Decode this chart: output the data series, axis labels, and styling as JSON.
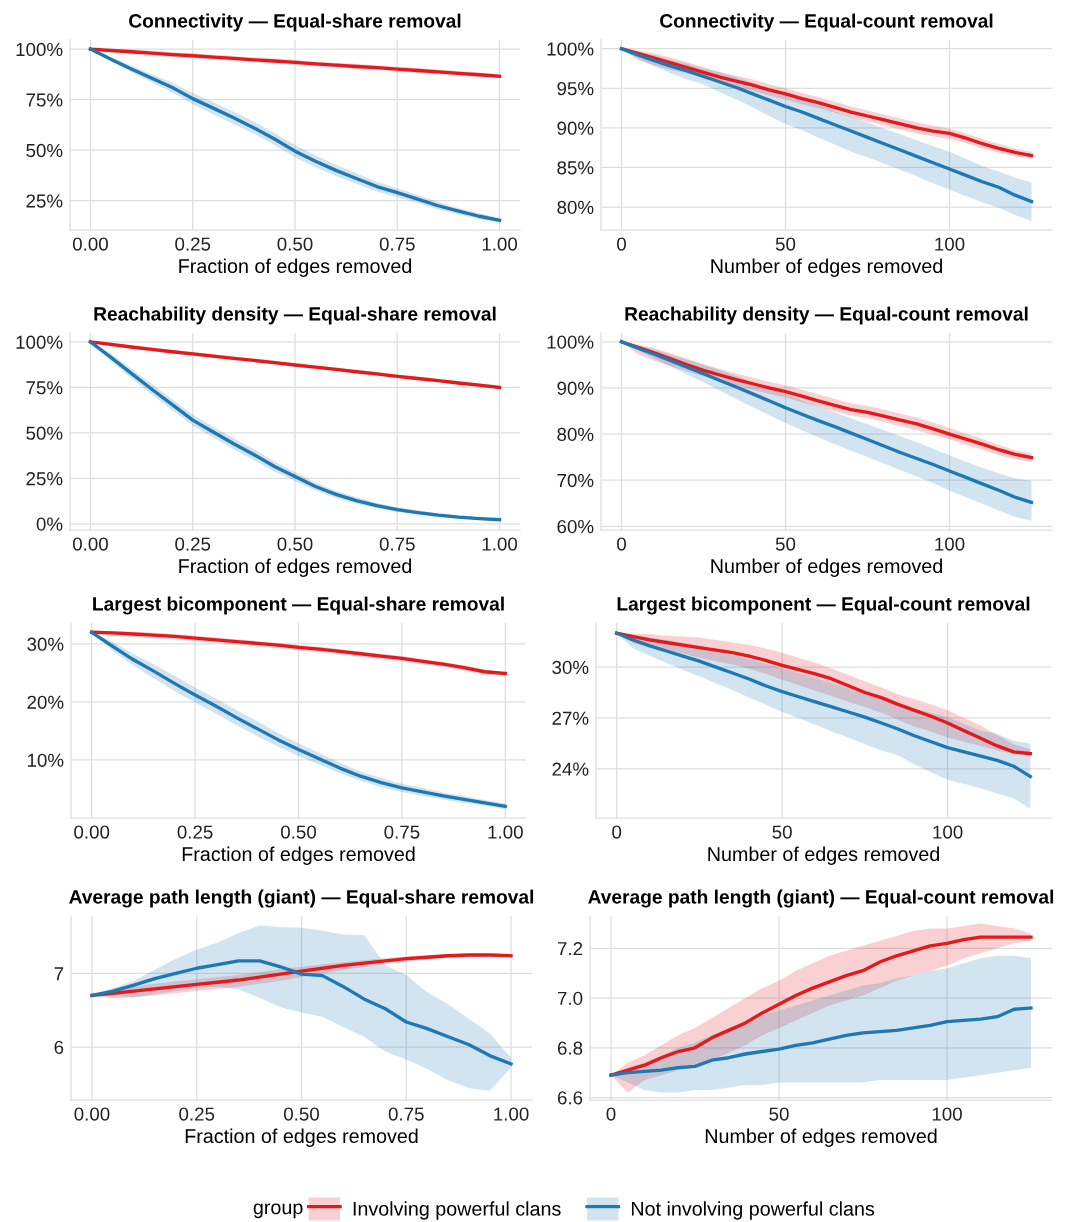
{
  "chart_data": [
    {
      "type": "line",
      "title": "Connectivity — Equal-share removal",
      "xlabel": "Fraction of edges removed",
      "x": [
        0,
        0.05,
        0.1,
        0.15,
        0.2,
        0.25,
        0.3,
        0.35,
        0.4,
        0.45,
        0.5,
        0.55,
        0.6,
        0.65,
        0.7,
        0.75,
        0.8,
        0.85,
        0.9,
        0.95,
        1
      ],
      "xlim": [
        -0.05,
        1.05
      ],
      "xticks": [
        {
          "value": 0,
          "label": "0.00"
        },
        0.25,
        {
          "value": 0.5,
          "label": "0.50"
        },
        0.75,
        {
          "value": 1,
          "label": "1.00"
        }
      ],
      "ylim": [
        10.5,
        104.5
      ],
      "yticks": [
        {
          "value": 25,
          "label": "25%"
        },
        {
          "value": 50,
          "label": "50%"
        },
        {
          "value": 75,
          "label": "75%"
        },
        {
          "value": 100,
          "label": "100%"
        }
      ],
      "grid": true,
      "legend": "bottom",
      "legend_title": "group",
      "series": [
        {
          "name": "Involving powerful clans",
          "color": "#e31a1c",
          "values": [
            100,
            99.3,
            98.7,
            98.0,
            97.3,
            96.7,
            96.0,
            95.4,
            94.7,
            94.1,
            93.4,
            92.7,
            92.1,
            91.4,
            90.8,
            90.1,
            89.4,
            88.7,
            88.0,
            87.3,
            86.6
          ],
          "lower": [
            100,
            98.6,
            97.5,
            96.8,
            96.1,
            95.5,
            94.8,
            94.2,
            93.5,
            92.9,
            92.2,
            91.5,
            90.9,
            90.2,
            89.6,
            88.9,
            88.2,
            87.5,
            86.8,
            86.2,
            85.6
          ],
          "upper": [
            100,
            99.9,
            99.9,
            99.2,
            98.5,
            97.9,
            97.2,
            96.6,
            95.9,
            95.3,
            94.6,
            93.9,
            93.3,
            92.6,
            92.0,
            91.3,
            90.6,
            89.9,
            89.2,
            88.4,
            87.6
          ]
        },
        {
          "name": "Not involving powerful clans",
          "color": "#1f78b4",
          "values": [
            100,
            95.0,
            90.2,
            85.6,
            81.0,
            75.5,
            70.8,
            66.0,
            61.0,
            55.5,
            49.5,
            44.5,
            40.0,
            36.0,
            32.0,
            29.0,
            25.8,
            22.5,
            19.8,
            17.3,
            15.3
          ],
          "lower": [
            100,
            94.0,
            88.7,
            83.6,
            78.5,
            72.7,
            67.8,
            63.0,
            58.0,
            52.5,
            46.5,
            41.5,
            37.2,
            33.4,
            29.6,
            26.8,
            23.8,
            20.7,
            18.2,
            15.9,
            14.1
          ],
          "upper": [
            100,
            96.0,
            91.7,
            87.6,
            83.5,
            78.3,
            73.8,
            69.0,
            64.0,
            58.5,
            52.5,
            47.5,
            42.8,
            38.6,
            34.4,
            31.2,
            27.8,
            24.3,
            21.4,
            18.7,
            16.5
          ]
        }
      ]
    },
    {
      "type": "line",
      "title": "Connectivity — Equal-count removal",
      "xlabel": "Number of edges removed",
      "x": [
        0,
        5,
        10,
        15,
        20,
        25,
        30,
        35,
        40,
        45,
        50,
        55,
        60,
        65,
        70,
        75,
        80,
        85,
        90,
        95,
        100,
        105,
        110,
        115,
        120,
        125
      ],
      "xlim": [
        -6.25,
        131.25
      ],
      "xticks": [
        0,
        50,
        100
      ],
      "ylim": [
        77.1,
        101.1
      ],
      "yticks": [
        {
          "value": 80,
          "label": "80%"
        },
        {
          "value": 85,
          "label": "85%"
        },
        {
          "value": 90,
          "label": "90%"
        },
        {
          "value": 95,
          "label": "95%"
        },
        {
          "value": 100,
          "label": "100%"
        }
      ],
      "grid": true,
      "series": [
        {
          "name": "Involving powerful clans",
          "color": "#e31a1c",
          "values": [
            100,
            99.4,
            98.8,
            98.2,
            97.6,
            97.0,
            96.4,
            95.9,
            95.4,
            94.8,
            94.3,
            93.7,
            93.2,
            92.6,
            92.0,
            91.5,
            91.0,
            90.5,
            90.0,
            89.6,
            89.3,
            88.7,
            88.0,
            87.4,
            86.9,
            86.5
          ],
          "lower": [
            100,
            98.6,
            97.9,
            97.3,
            96.9,
            96.3,
            95.8,
            95.2,
            94.7,
            94.1,
            93.6,
            93.0,
            92.5,
            91.9,
            91.3,
            90.8,
            90.3,
            89.8,
            89.3,
            88.9,
            88.6,
            88.1,
            87.4,
            86.9,
            86.4,
            86.1
          ],
          "upper": [
            100,
            99.8,
            99.4,
            98.9,
            98.3,
            97.7,
            97.1,
            96.6,
            96.1,
            95.5,
            95.0,
            94.4,
            93.9,
            93.3,
            92.7,
            92.2,
            91.7,
            91.2,
            90.7,
            90.3,
            89.9,
            89.3,
            88.6,
            88.0,
            87.4,
            87.0
          ]
        },
        {
          "name": "Not involving powerful clans",
          "color": "#1f78b4",
          "values": [
            100,
            99.2,
            98.5,
            97.8,
            97.2,
            96.5,
            95.8,
            95.1,
            94.3,
            93.5,
            92.7,
            92.0,
            91.2,
            90.4,
            89.6,
            88.8,
            88.0,
            87.2,
            86.4,
            85.6,
            84.8,
            84.0,
            83.2,
            82.5,
            81.5,
            80.7
          ],
          "lower": [
            100,
            98.7,
            97.8,
            96.9,
            96.1,
            95.5,
            94.5,
            93.6,
            92.6,
            91.5,
            90.5,
            89.7,
            88.8,
            87.9,
            87.0,
            86.3,
            85.5,
            84.7,
            83.9,
            83.0,
            82.2,
            81.4,
            80.6,
            79.9,
            79.0,
            78.2
          ],
          "upper": [
            100,
            99.6,
            99.2,
            98.6,
            98.1,
            97.5,
            97.0,
            96.4,
            95.7,
            94.9,
            94.2,
            93.6,
            92.9,
            92.1,
            91.4,
            90.7,
            89.9,
            89.2,
            88.4,
            87.7,
            87.0,
            86.1,
            85.2,
            84.5,
            83.7,
            83.1
          ]
        }
      ]
    },
    {
      "type": "line",
      "title": "Reachability density — Equal-share removal",
      "xlabel": "Fraction of edges removed",
      "x": [
        0,
        0.05,
        0.1,
        0.15,
        0.2,
        0.25,
        0.3,
        0.35,
        0.4,
        0.45,
        0.5,
        0.55,
        0.6,
        0.65,
        0.7,
        0.75,
        0.8,
        0.85,
        0.9,
        0.95,
        1
      ],
      "xlim": [
        -0.05,
        1.05
      ],
      "xticks": [
        {
          "value": 0,
          "label": "0.00"
        },
        0.25,
        {
          "value": 0.5,
          "label": "0.50"
        },
        0.75,
        {
          "value": 1,
          "label": "1.00"
        }
      ],
      "ylim": [
        -3.4,
        104.9
      ],
      "yticks": [
        {
          "value": 0,
          "label": "0%"
        },
        {
          "value": 25,
          "label": "25%"
        },
        {
          "value": 50,
          "label": "50%"
        },
        {
          "value": 75,
          "label": "75%"
        },
        {
          "value": 100,
          "label": "100%"
        }
      ],
      "grid": true,
      "series": [
        {
          "name": "Involving powerful clans",
          "color": "#e31a1c",
          "values": [
            100,
            98.6,
            97.2,
            95.9,
            94.6,
            93.4,
            92.2,
            91.0,
            89.8,
            88.6,
            87.3,
            86.1,
            84.9,
            83.6,
            82.4,
            81.1,
            79.9,
            78.7,
            77.4,
            76.2,
            75.0
          ],
          "lower": [
            100,
            97.6,
            96.2,
            94.9,
            93.6,
            92.4,
            91.2,
            90.0,
            88.8,
            87.6,
            86.3,
            85.1,
            83.9,
            82.6,
            81.4,
            80.1,
            78.9,
            77.7,
            76.4,
            75.2,
            74.0
          ],
          "upper": [
            100,
            99.4,
            98.2,
            96.9,
            95.6,
            94.4,
            93.2,
            92.0,
            90.8,
            89.6,
            88.3,
            87.1,
            85.9,
            84.6,
            83.4,
            82.1,
            80.9,
            79.7,
            78.4,
            77.2,
            76.0
          ]
        },
        {
          "name": "Not involving powerful clans",
          "color": "#1f78b4",
          "values": [
            100,
            91.5,
            82.7,
            74.0,
            65.5,
            57.0,
            50.5,
            44.0,
            38.0,
            31.5,
            26.0,
            20.5,
            16.2,
            12.8,
            10.0,
            7.8,
            6.2,
            4.8,
            3.7,
            2.9,
            2.3
          ],
          "lower": [
            100,
            89.5,
            80.2,
            71.0,
            62.5,
            54.0,
            47.5,
            41.0,
            35.0,
            28.7,
            23.5,
            18.3,
            14.2,
            11.0,
            8.5,
            6.5,
            5.1,
            3.8,
            2.8,
            2.1,
            1.6
          ],
          "upper": [
            100,
            93.5,
            85.2,
            77.0,
            68.5,
            60.0,
            53.5,
            47.0,
            41.0,
            34.3,
            28.5,
            22.7,
            18.2,
            14.6,
            11.5,
            9.1,
            7.3,
            5.8,
            4.6,
            3.7,
            3.0
          ]
        }
      ]
    },
    {
      "type": "line",
      "title": "Reachability density — Equal-count removal",
      "xlabel": "Number of edges removed",
      "x": [
        0,
        5,
        10,
        15,
        20,
        25,
        30,
        35,
        40,
        45,
        50,
        55,
        60,
        65,
        70,
        75,
        80,
        85,
        90,
        95,
        100,
        105,
        110,
        115,
        120,
        125
      ],
      "xlim": [
        -6.25,
        131.25
      ],
      "xticks": [
        0,
        50,
        100
      ],
      "ylim": [
        59.2,
        101.9
      ],
      "yticks": [
        {
          "value": 60,
          "label": "60%"
        },
        {
          "value": 70,
          "label": "70%"
        },
        {
          "value": 80,
          "label": "80%"
        },
        {
          "value": 90,
          "label": "90%"
        },
        {
          "value": 100,
          "label": "100%"
        }
      ],
      "grid": true,
      "series": [
        {
          "name": "Involving powerful clans",
          "color": "#e31a1c",
          "values": [
            100,
            98.8,
            97.6,
            96.3,
            95.0,
            93.8,
            92.8,
            91.8,
            90.9,
            90.0,
            89.2,
            88.2,
            87.2,
            86.2,
            85.3,
            84.7,
            83.9,
            83.0,
            82.2,
            81.1,
            80.0,
            78.9,
            77.8,
            76.6,
            75.6,
            74.9
          ],
          "lower": [
            100,
            97.3,
            95.9,
            94.7,
            93.6,
            92.5,
            91.5,
            90.5,
            89.6,
            88.7,
            87.9,
            86.9,
            85.9,
            84.9,
            84.0,
            83.4,
            82.6,
            81.7,
            80.9,
            79.8,
            78.8,
            77.7,
            76.6,
            75.4,
            74.5,
            74.0
          ],
          "upper": [
            100,
            99.4,
            98.6,
            97.5,
            96.3,
            95.1,
            94.1,
            93.1,
            92.2,
            91.3,
            90.6,
            89.6,
            88.6,
            87.6,
            86.7,
            86.1,
            85.3,
            84.4,
            83.6,
            82.5,
            81.3,
            80.1,
            78.9,
            77.7,
            76.5,
            75.8
          ]
        },
        {
          "name": "Not involving powerful clans",
          "color": "#1f78b4",
          "values": [
            100,
            98.6,
            97.3,
            95.9,
            94.5,
            93.1,
            91.6,
            90.2,
            88.7,
            87.2,
            85.7,
            84.3,
            82.9,
            81.6,
            80.2,
            78.8,
            77.4,
            76.0,
            74.7,
            73.4,
            72.0,
            70.6,
            69.2,
            67.8,
            66.3,
            65.2
          ],
          "lower": [
            100,
            98.1,
            96.3,
            94.6,
            92.9,
            91.2,
            89.4,
            87.6,
            85.8,
            84.1,
            82.4,
            80.8,
            79.3,
            77.8,
            76.4,
            75.0,
            73.6,
            72.2,
            70.8,
            69.4,
            67.7,
            66.3,
            64.9,
            63.4,
            62.0,
            61.2
          ],
          "upper": [
            100,
            99.2,
            98.3,
            97.2,
            96.1,
            95.0,
            93.8,
            92.6,
            91.3,
            89.9,
            88.6,
            87.3,
            86.0,
            84.7,
            83.4,
            82.1,
            80.8,
            79.5,
            78.2,
            76.8,
            75.4,
            74.0,
            72.7,
            71.5,
            70.4,
            69.8
          ]
        }
      ]
    },
    {
      "type": "line",
      "title": "Largest bicomponent — Equal-share removal",
      "xlabel": "Fraction of edges removed",
      "x": [
        0,
        0.05,
        0.1,
        0.15,
        0.2,
        0.25,
        0.3,
        0.35,
        0.4,
        0.45,
        0.5,
        0.55,
        0.6,
        0.65,
        0.7,
        0.75,
        0.8,
        0.85,
        0.9,
        0.95,
        1
      ],
      "xlim": [
        -0.05,
        1.05
      ],
      "xticks": [
        {
          "value": 0,
          "label": "0.00"
        },
        0.25,
        {
          "value": 0.5,
          "label": "0.50"
        },
        0.75,
        {
          "value": 1,
          "label": "1.00"
        }
      ],
      "ylim": [
        0,
        33.6
      ],
      "yticks": [
        {
          "value": 10,
          "label": "10%"
        },
        {
          "value": 20,
          "label": "20%"
        },
        {
          "value": 30,
          "label": "30%"
        }
      ],
      "grid": true,
      "series": [
        {
          "name": "Involving powerful clans",
          "color": "#e31a1c",
          "values": [
            32.0,
            31.9,
            31.7,
            31.5,
            31.3,
            31.0,
            30.7,
            30.4,
            30.1,
            29.8,
            29.4,
            29.1,
            28.7,
            28.3,
            27.9,
            27.5,
            27.0,
            26.5,
            25.9,
            25.2,
            24.9
          ],
          "lower": [
            32.0,
            31.4,
            31.2,
            31.0,
            30.8,
            30.5,
            30.2,
            29.9,
            29.6,
            29.3,
            28.9,
            28.6,
            28.2,
            27.8,
            27.4,
            27.0,
            26.5,
            26.0,
            25.4,
            24.7,
            24.5
          ],
          "upper": [
            32.0,
            32.2,
            32.1,
            31.9,
            31.7,
            31.4,
            31.1,
            30.8,
            30.5,
            30.2,
            29.8,
            29.5,
            29.1,
            28.7,
            28.3,
            27.9,
            27.4,
            26.9,
            26.3,
            25.6,
            25.2
          ]
        },
        {
          "name": "Not involving powerful clans",
          "color": "#1f78b4",
          "values": [
            32.0,
            29.6,
            27.3,
            25.3,
            23.2,
            21.2,
            19.3,
            17.3,
            15.4,
            13.5,
            11.8,
            10.2,
            8.6,
            7.2,
            6.1,
            5.2,
            4.5,
            3.8,
            3.2,
            2.6,
            2.0
          ],
          "lower": [
            32.0,
            28.8,
            26.3,
            24.1,
            21.9,
            19.9,
            18.0,
            16.0,
            14.1,
            12.3,
            10.7,
            9.2,
            7.7,
            6.4,
            5.3,
            4.5,
            3.8,
            3.2,
            2.6,
            2.1,
            1.5
          ],
          "upper": [
            32.0,
            30.4,
            28.3,
            26.5,
            24.5,
            22.5,
            20.6,
            18.6,
            16.7,
            14.7,
            12.9,
            11.2,
            9.5,
            8.0,
            6.9,
            5.9,
            5.2,
            4.4,
            3.8,
            3.1,
            2.5
          ]
        }
      ]
    },
    {
      "type": "line",
      "title": "Largest bicomponent — Equal-count removal",
      "xlabel": "Number of edges removed",
      "x": [
        0,
        5,
        10,
        15,
        20,
        25,
        30,
        35,
        40,
        45,
        50,
        55,
        60,
        65,
        70,
        75,
        80,
        85,
        90,
        95,
        100,
        105,
        110,
        115,
        120,
        125
      ],
      "xlim": [
        -6.25,
        131.25
      ],
      "xticks": [
        0,
        50,
        100
      ],
      "ylim": [
        21.1,
        32.6
      ],
      "yticks": [
        {
          "value": 24,
          "label": "24%"
        },
        {
          "value": 27,
          "label": "27%"
        },
        {
          "value": 30,
          "label": "30%"
        }
      ],
      "grid": true,
      "series": [
        {
          "name": "Involving powerful clans",
          "color": "#e31a1c",
          "values": [
            32.0,
            31.8,
            31.6,
            31.45,
            31.3,
            31.15,
            31.0,
            30.85,
            30.65,
            30.4,
            30.1,
            29.85,
            29.6,
            29.3,
            28.9,
            28.5,
            28.2,
            27.8,
            27.45,
            27.1,
            26.7,
            26.25,
            25.8,
            25.35,
            25.0,
            24.9
          ],
          "lower": [
            32.0,
            31.4,
            31.2,
            31.0,
            30.8,
            30.55,
            30.35,
            30.15,
            29.9,
            29.6,
            29.25,
            28.95,
            28.6,
            28.3,
            27.95,
            27.65,
            27.3,
            26.9,
            26.5,
            26.2,
            25.85,
            25.6,
            25.35,
            25.1,
            24.85,
            24.75
          ],
          "upper": [
            32.0,
            31.95,
            31.95,
            31.85,
            31.8,
            31.75,
            31.6,
            31.45,
            31.3,
            31.1,
            30.85,
            30.55,
            30.25,
            29.9,
            29.55,
            29.15,
            28.8,
            28.4,
            28.1,
            27.8,
            27.45,
            27.0,
            26.55,
            26.0,
            25.45,
            25.15
          ]
        },
        {
          "name": "Not involving powerful clans",
          "color": "#1f78b4",
          "values": [
            32.0,
            31.6,
            31.25,
            30.95,
            30.65,
            30.35,
            30.0,
            29.65,
            29.3,
            28.9,
            28.55,
            28.25,
            27.95,
            27.65,
            27.35,
            27.05,
            26.7,
            26.35,
            25.95,
            25.6,
            25.25,
            25.0,
            24.75,
            24.5,
            24.15,
            23.55
          ],
          "lower": [
            32.0,
            31.1,
            30.65,
            30.25,
            29.85,
            29.45,
            29.05,
            28.65,
            28.2,
            27.8,
            27.35,
            27.0,
            26.6,
            26.2,
            25.85,
            25.45,
            25.1,
            24.8,
            24.25,
            23.8,
            23.35,
            23.1,
            22.85,
            22.55,
            22.25,
            21.65
          ],
          "upper": [
            32.0,
            31.9,
            31.75,
            31.6,
            31.45,
            31.25,
            31.0,
            30.7,
            30.45,
            30.2,
            29.95,
            29.65,
            29.35,
            29.05,
            28.75,
            28.45,
            28.15,
            27.85,
            27.55,
            27.3,
            27.05,
            26.65,
            26.25,
            26.05,
            25.65,
            25.5
          ]
        }
      ]
    },
    {
      "type": "line",
      "title": "Average path length (giant) — Equal-share removal",
      "xlabel": "Fraction of edges removed",
      "x": [
        0,
        0.05,
        0.1,
        0.15,
        0.2,
        0.25,
        0.3,
        0.35,
        0.4,
        0.45,
        0.5,
        0.55,
        0.6,
        0.65,
        0.7,
        0.75,
        0.8,
        0.85,
        0.9,
        0.95,
        1
      ],
      "xlim": [
        -0.05,
        1.05
      ],
      "xticks": [
        {
          "value": 0,
          "label": "0.00"
        },
        0.25,
        {
          "value": 0.5,
          "label": "0.50"
        },
        0.75,
        {
          "value": 1,
          "label": "1.00"
        }
      ],
      "ylim": [
        5.28,
        7.78
      ],
      "yticks": [
        6,
        7
      ],
      "grid": true,
      "series": [
        {
          "name": "Involving powerful clans",
          "color": "#e31a1c",
          "values": [
            6.7,
            6.73,
            6.76,
            6.79,
            6.82,
            6.85,
            6.88,
            6.91,
            6.95,
            6.99,
            7.03,
            7.07,
            7.11,
            7.14,
            7.17,
            7.2,
            7.22,
            7.24,
            7.25,
            7.25,
            7.24
          ],
          "lower": [
            6.7,
            6.66,
            6.68,
            6.7,
            6.73,
            6.76,
            6.79,
            6.82,
            6.86,
            6.9,
            6.95,
            7.0,
            7.05,
            7.09,
            7.13,
            7.16,
            7.19,
            7.21,
            7.22,
            7.23,
            7.22
          ],
          "upper": [
            6.7,
            6.78,
            6.82,
            6.86,
            6.89,
            6.92,
            6.95,
            6.98,
            7.02,
            7.06,
            7.09,
            7.12,
            7.15,
            7.18,
            7.21,
            7.23,
            7.25,
            7.26,
            7.27,
            7.27,
            7.26
          ]
        },
        {
          "name": "Not involving powerful clans",
          "color": "#1f78b4",
          "values": [
            6.7,
            6.76,
            6.84,
            6.93,
            7.0,
            7.07,
            7.12,
            7.17,
            7.17,
            7.09,
            6.99,
            6.97,
            6.82,
            6.65,
            6.52,
            6.34,
            6.25,
            6.14,
            6.03,
            5.88,
            5.77
          ],
          "lower": [
            6.7,
            6.7,
            6.67,
            6.72,
            6.76,
            6.8,
            6.82,
            6.78,
            6.67,
            6.54,
            6.47,
            6.41,
            6.27,
            6.14,
            5.94,
            5.83,
            5.7,
            5.55,
            5.44,
            5.41,
            5.72
          ],
          "upper": [
            6.7,
            6.8,
            6.9,
            7.05,
            7.2,
            7.32,
            7.42,
            7.55,
            7.65,
            7.63,
            7.62,
            7.58,
            7.53,
            7.52,
            7.11,
            6.98,
            6.74,
            6.58,
            6.38,
            6.18,
            5.85
          ]
        }
      ]
    },
    {
      "type": "line",
      "title": "Average path length (giant) — Equal-count removal",
      "xlabel": "Number of edges removed",
      "x": [
        0,
        5,
        10,
        15,
        20,
        25,
        30,
        35,
        40,
        45,
        50,
        55,
        60,
        65,
        70,
        75,
        80,
        85,
        90,
        95,
        100,
        105,
        110,
        115,
        120,
        125
      ],
      "xlim": [
        -6.25,
        131.25
      ],
      "xticks": [
        0,
        50,
        100
      ],
      "ylim": [
        6.59,
        7.33
      ],
      "yticks": [
        6.6,
        6.8,
        {
          "value": 7,
          "label": "7.0"
        },
        7.2
      ],
      "grid": true,
      "series": [
        {
          "name": "Involving powerful clans",
          "color": "#e31a1c",
          "values": [
            6.69,
            6.71,
            6.73,
            6.76,
            6.785,
            6.8,
            6.84,
            6.87,
            6.9,
            6.94,
            6.975,
            7.01,
            7.04,
            7.065,
            7.09,
            7.11,
            7.145,
            7.17,
            7.19,
            7.21,
            7.22,
            7.235,
            7.245,
            7.245,
            7.245,
            7.245
          ],
          "lower": [
            6.69,
            6.62,
            6.67,
            6.69,
            6.71,
            6.72,
            6.75,
            6.78,
            6.81,
            6.85,
            6.88,
            6.91,
            6.94,
            6.97,
            6.99,
            7.01,
            7.04,
            7.07,
            7.09,
            7.11,
            7.13,
            7.16,
            7.18,
            7.2,
            7.22,
            7.23
          ],
          "upper": [
            6.69,
            6.74,
            6.77,
            6.81,
            6.85,
            6.88,
            6.92,
            6.96,
            7.0,
            7.04,
            7.07,
            7.11,
            7.14,
            7.17,
            7.19,
            7.21,
            7.23,
            7.25,
            7.27,
            7.28,
            7.28,
            7.29,
            7.3,
            7.29,
            7.28,
            7.26
          ]
        },
        {
          "name": "Not involving powerful clans",
          "color": "#1f78b4",
          "values": [
            6.69,
            6.7,
            6.705,
            6.71,
            6.72,
            6.725,
            6.75,
            6.76,
            6.775,
            6.785,
            6.795,
            6.81,
            6.82,
            6.835,
            6.85,
            6.86,
            6.865,
            6.87,
            6.88,
            6.89,
            6.905,
            6.91,
            6.915,
            6.925,
            6.955,
            6.96
          ],
          "lower": [
            6.69,
            6.66,
            6.63,
            6.62,
            6.62,
            6.63,
            6.63,
            6.64,
            6.65,
            6.65,
            6.66,
            6.66,
            6.66,
            6.66,
            6.66,
            6.66,
            6.67,
            6.67,
            6.67,
            6.67,
            6.67,
            6.68,
            6.69,
            6.7,
            6.71,
            6.72
          ],
          "upper": [
            6.69,
            6.72,
            6.74,
            6.77,
            6.8,
            6.82,
            6.85,
            6.88,
            6.9,
            6.93,
            6.95,
            6.97,
            6.99,
            7.01,
            7.03,
            7.05,
            7.06,
            7.08,
            7.09,
            7.11,
            7.12,
            7.14,
            7.16,
            7.17,
            7.17,
            7.16
          ]
        }
      ]
    }
  ]
}
